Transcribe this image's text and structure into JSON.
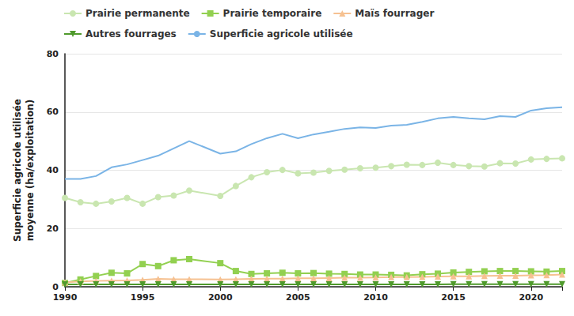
{
  "chart_data": {
    "type": "line",
    "y_label": "Superficie agricole utilisée\nmoyenne (ha/exploitation)",
    "x": [
      1990,
      1991,
      1992,
      1993,
      1994,
      1995,
      1996,
      1997,
      1998,
      2000,
      2001,
      2002,
      2003,
      2004,
      2005,
      2006,
      2007,
      2008,
      2009,
      2010,
      2011,
      2012,
      2013,
      2014,
      2015,
      2016,
      2017,
      2018,
      2019,
      2020,
      2021,
      2022
    ],
    "series": [
      {
        "name": "Prairie permanente",
        "color": "#c9e6b0",
        "marker": "circle",
        "values": [
          30.5,
          29,
          28.5,
          29.3,
          30.5,
          28.5,
          30.8,
          31.3,
          33,
          31.2,
          34.6,
          37.6,
          39.3,
          40.1,
          38.9,
          39.2,
          39.8,
          40.2,
          40.7,
          40.9,
          41.4,
          41.9,
          41.8,
          42.6,
          41.8,
          41.4,
          41.3,
          42.4,
          42.3,
          43.7,
          43.9,
          44.1
        ]
      },
      {
        "name": "Prairie temporaire",
        "color": "#92d050",
        "marker": "square",
        "values": [
          1.3,
          2.5,
          3.7,
          4.8,
          4.6,
          7.8,
          7.1,
          9.1,
          9.5,
          8.1,
          5.4,
          4.4,
          4.6,
          4.8,
          4.6,
          4.7,
          4.5,
          4.4,
          4.2,
          4.2,
          4.1,
          3.9,
          4.3,
          4.5,
          4.9,
          5.1,
          5.3,
          5.4,
          5.4,
          5.3,
          5.2,
          5.4
        ]
      },
      {
        "name": "Maïs fourrager",
        "color": "#f6c191",
        "marker": "triangle",
        "values": [
          1.5,
          1.8,
          2,
          2.1,
          2.2,
          2.4,
          2.7,
          2.6,
          2.6,
          2.5,
          2.6,
          2.7,
          2.8,
          2.8,
          2.9,
          2.9,
          3,
          3.1,
          3.1,
          3.2,
          3.3,
          3.3,
          3.4,
          3.5,
          3.6,
          3.6,
          3.7,
          3.8,
          3.8,
          3.9,
          4,
          4.2
        ]
      },
      {
        "name": "Autres fourrages",
        "color": "#4f9a2c",
        "marker": "triangle_down",
        "values": [
          0.8,
          0.8,
          0.8,
          0.8,
          0.8,
          0.8,
          0.8,
          0.8,
          0.8,
          0.8,
          0.8,
          0.8,
          0.8,
          0.8,
          0.8,
          0.8,
          0.8,
          0.8,
          0.8,
          0.8,
          0.8,
          0.8,
          0.8,
          0.8,
          0.9,
          0.9,
          0.9,
          0.9,
          0.9,
          0.9,
          0.9,
          0.9
        ]
      },
      {
        "name": "Superficie agricole utilisée",
        "color": "#7ab4e6",
        "marker": "none",
        "values": [
          37,
          37,
          38,
          41,
          42,
          43.5,
          45,
          47.5,
          50,
          45.7,
          46.5,
          49,
          51,
          52.5,
          51,
          52.3,
          53.2,
          54.2,
          54.7,
          54.5,
          55.3,
          55.6,
          56.6,
          57.8,
          58.3,
          57.8,
          57.5,
          58.6,
          58.3,
          60.5,
          61.3,
          61.6
        ]
      }
    ],
    "xlim": [
      1990,
      2022
    ],
    "xticks": [
      1990,
      1995,
      2000,
      2005,
      2010,
      2015,
      2020
    ],
    "ylim": [
      0,
      80
    ],
    "yticks": [
      0,
      20,
      40,
      60,
      80
    ],
    "grid": true,
    "legend": "top"
  }
}
